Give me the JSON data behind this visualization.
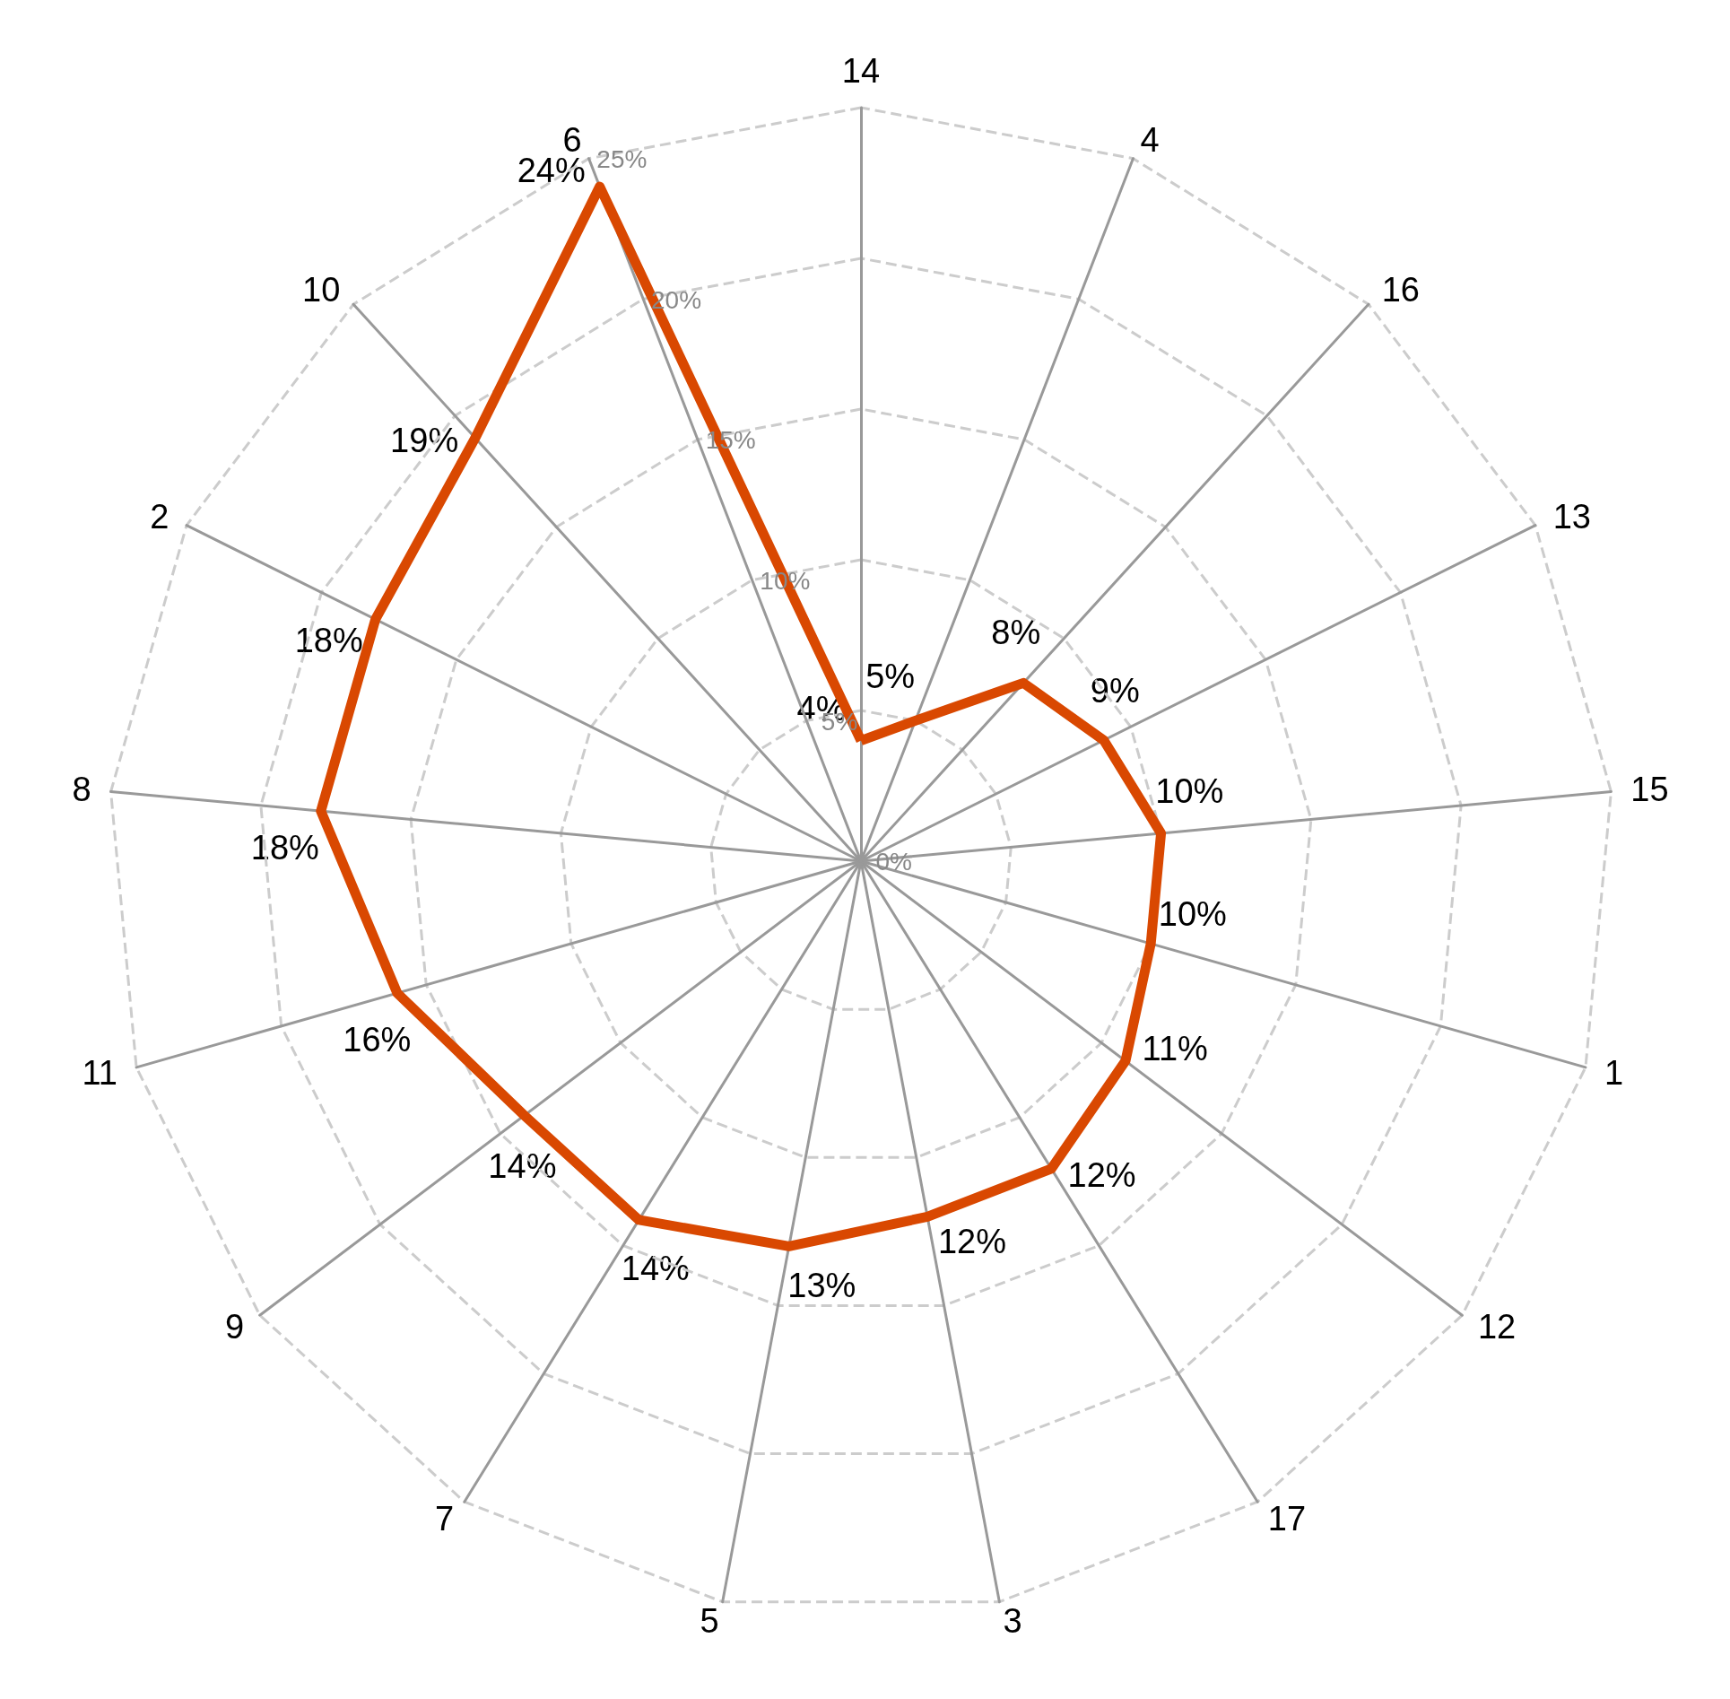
{
  "chart_data": {
    "type": "radar",
    "categories": [
      "14",
      "4",
      "16",
      "13",
      "15",
      "1",
      "12",
      "17",
      "3",
      "5",
      "7",
      "9",
      "11",
      "8",
      "2",
      "10",
      "6"
    ],
    "series": [
      {
        "color": "#d94801",
        "values": [
          4,
          5,
          8,
          9,
          10,
          10,
          11,
          12,
          12,
          13,
          14,
          14,
          16,
          18,
          18,
          19,
          24
        ],
        "value_labels": [
          "4%",
          "5%",
          "8%",
          "9%",
          "10%",
          "10%",
          "11%",
          "12%",
          "12%",
          "13%",
          "14%",
          "14%",
          "16%",
          "18%",
          "18%",
          "19%",
          "24%"
        ]
      }
    ],
    "ylim": [
      0,
      25
    ],
    "yticks": [
      {
        "value": 0,
        "label": "0%"
      },
      {
        "value": 5,
        "label": "5%"
      },
      {
        "value": 10,
        "label": "10%"
      },
      {
        "value": 15,
        "label": "15%"
      },
      {
        "value": 20,
        "label": "20%"
      },
      {
        "value": 25,
        "label": "25%"
      }
    ],
    "grid": true,
    "marker": "none",
    "line_style": "solid"
  }
}
